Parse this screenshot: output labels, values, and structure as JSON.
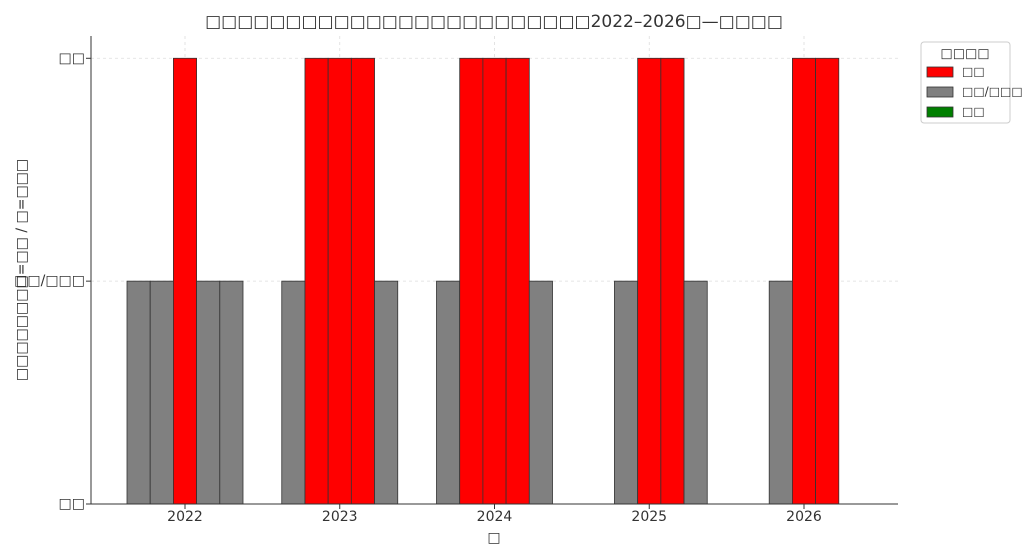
{
  "chart_data": {
    "type": "bar",
    "title": "□□□□□□□□□□□□□□□□□□□□□□□□2022–2026□—□□□□",
    "x_label": "□",
    "y_label": "□□□□□□□□=□□ / □=□□□",
    "categories": [
      "2022",
      "2023",
      "2024",
      "2025",
      "2026"
    ],
    "series": [
      {
        "values": [
          1,
          1,
          1,
          0,
          0
        ]
      },
      {
        "values": [
          1,
          2,
          2,
          1,
          1
        ]
      },
      {
        "values": [
          2,
          2,
          2,
          2,
          2
        ]
      },
      {
        "values": [
          1,
          2,
          2,
          2,
          2
        ]
      },
      {
        "values": [
          1,
          1,
          1,
          1,
          0
        ]
      }
    ],
    "legend_title": "□□□□",
    "legend": [
      {
        "label": "□□",
        "color": "#ff0000",
        "value": 2
      },
      {
        "label": "□□/□□□",
        "color": "#808080",
        "value": 1
      },
      {
        "label": "□□",
        "color": "#008000",
        "value": 0
      }
    ],
    "legend_position": "outside right",
    "ylim": [
      0,
      2.1
    ],
    "yticks": [
      {
        "value": 0,
        "label": "□□"
      },
      {
        "value": 1,
        "label": "□□/□□□"
      },
      {
        "value": 2,
        "label": "□□"
      }
    ],
    "grid": true
  }
}
